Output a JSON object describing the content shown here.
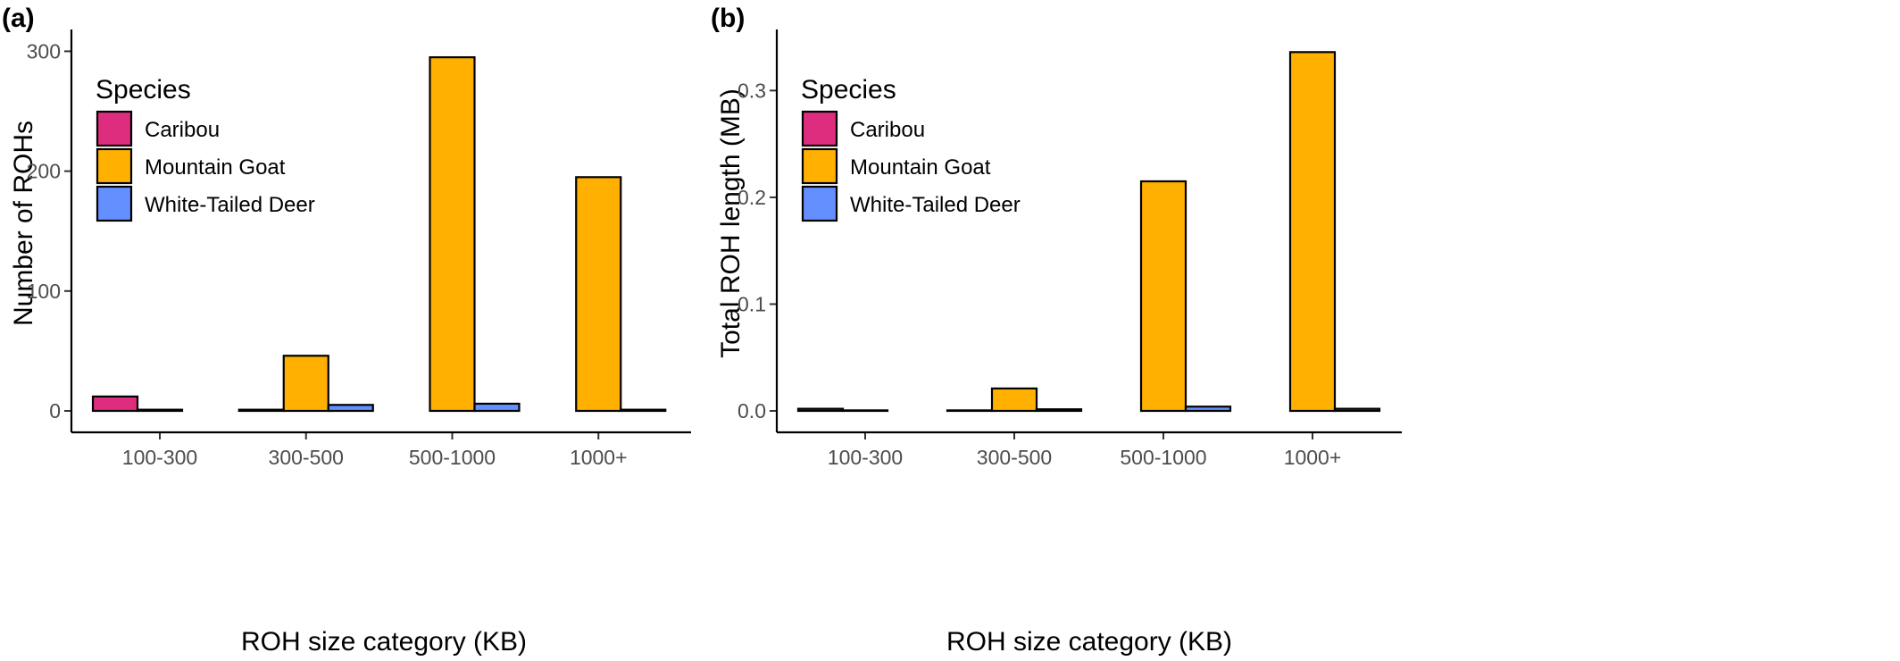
{
  "chart_data": [
    {
      "panel_tag": "(a)",
      "type": "bar",
      "categories": [
        "100-300",
        "300-500",
        "500-1000",
        "1000+"
      ],
      "series": [
        {
          "name": "Caribou",
          "color": "#DE2D7E",
          "values": [
            12,
            1,
            0,
            0
          ]
        },
        {
          "name": "Mountain Goat",
          "color": "#FFB000",
          "values": [
            1,
            46,
            295,
            195
          ]
        },
        {
          "name": "White-Tailed Deer",
          "color": "#648FFF",
          "values": [
            0,
            5,
            6,
            1
          ]
        }
      ],
      "xlabel": "ROH size category (KB)",
      "ylabel": "Number of ROHs",
      "ylim": [
        0,
        310
      ],
      "yticks": [
        0,
        100,
        200,
        300
      ],
      "ytick_labels": [
        "0",
        "100",
        "200",
        "300"
      ],
      "legend_title": "Species",
      "legend_position": "top-left",
      "grid": false
    },
    {
      "panel_tag": "(b)",
      "type": "bar",
      "categories": [
        "100-300",
        "300-500",
        "500-1000",
        "1000+"
      ],
      "series": [
        {
          "name": "Caribou",
          "color": "#DE2D7E",
          "values": [
            0.002,
            0.0005,
            0,
            0
          ]
        },
        {
          "name": "Mountain Goat",
          "color": "#FFB000",
          "values": [
            0.0005,
            0.021,
            0.215,
            0.336
          ]
        },
        {
          "name": "White-Tailed Deer",
          "color": "#648FFF",
          "values": [
            0,
            0.0015,
            0.004,
            0.002
          ]
        }
      ],
      "xlabel": "ROH size category (KB)",
      "ylabel": "Total ROH length (MB)",
      "ylim": [
        0,
        0.348
      ],
      "yticks": [
        0,
        0.1,
        0.2,
        0.3
      ],
      "ytick_labels": [
        "0.0",
        "0.1",
        "0.2",
        "0.3"
      ],
      "legend_title": "Species",
      "legend_position": "top-left",
      "grid": false
    }
  ]
}
